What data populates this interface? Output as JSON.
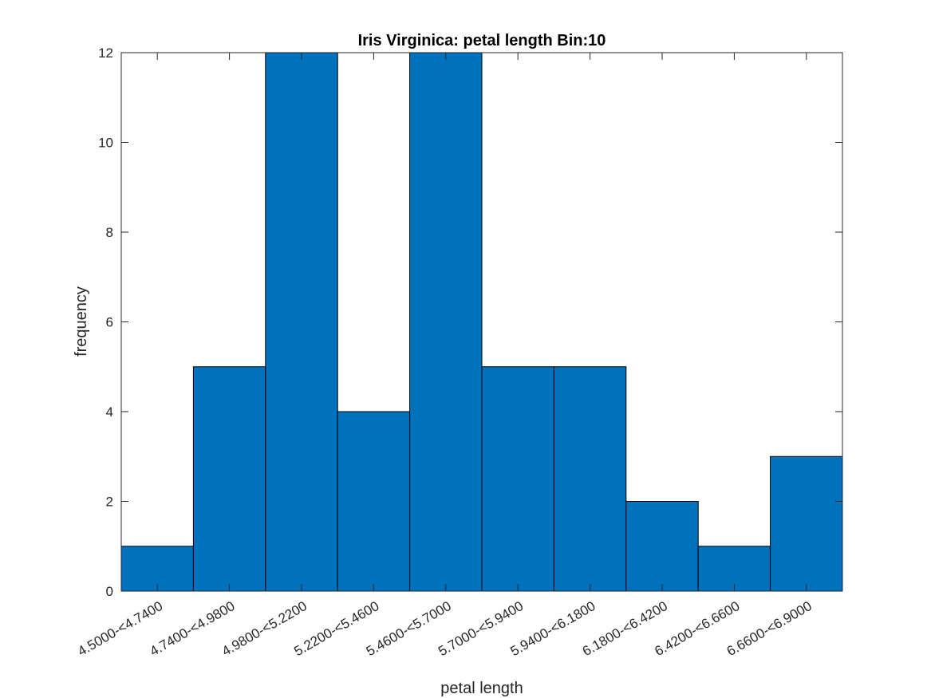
{
  "chart_data": {
    "type": "bar",
    "title": "Iris Virginica: petal length Bin:10",
    "xlabel": "petal length",
    "ylabel": "frequency",
    "categories": [
      "4.5000-<4.7400",
      "4.7400-<4.9800",
      "4.9800-<5.2200",
      "5.2200-<5.4600",
      "5.4600-<5.7000",
      "5.7000-<5.9400",
      "5.9400-<6.1800",
      "6.1800-<6.4200",
      "6.4200-<6.6600",
      "6.6600-<6.9000"
    ],
    "values": [
      1,
      5,
      12,
      4,
      12,
      5,
      5,
      2,
      1,
      3
    ],
    "ylim": [
      0,
      12
    ],
    "yticks": [
      "0",
      "2",
      "4",
      "6",
      "8",
      "10",
      "12"
    ],
    "grid": false,
    "colors": {
      "bar": "#0072BD",
      "edge": "#000000",
      "axis": "#262626"
    }
  }
}
